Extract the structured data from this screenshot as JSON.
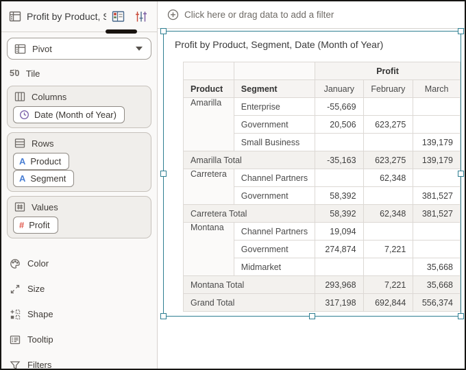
{
  "colors": {
    "selection_accent": "#2e7e91",
    "date_icon_purple": "#7a5fa8",
    "attribute_icon_blue": "#4a7fd4",
    "measure_icon_red": "#e0564a",
    "active_tab_underline": "#18130f"
  },
  "sidebar": {
    "title": "Profit by Product, S...",
    "tile_icon_glyph": "5̈0",
    "visualization_type": "Pivot",
    "tile_label": "Tile",
    "columns_section": {
      "label": "Columns",
      "pills": [
        {
          "label": "Date (Month of Year)",
          "icon": "clock-icon"
        }
      ]
    },
    "rows_section": {
      "label": "Rows",
      "pills": [
        {
          "label": "Product",
          "icon": "text-attribute-icon"
        },
        {
          "label": "Segment",
          "icon": "text-attribute-icon"
        }
      ]
    },
    "values_section": {
      "label": "Values",
      "pills": [
        {
          "label": "Profit",
          "icon": "number-measure-icon"
        }
      ]
    },
    "options": [
      {
        "label": "Color"
      },
      {
        "label": "Size"
      },
      {
        "label": "Shape"
      },
      {
        "label": "Tooltip"
      },
      {
        "label": "Filters"
      }
    ]
  },
  "filter_bar": {
    "label": "Click here or drag data to add a filter"
  },
  "visualization": {
    "title": "Profit by Product, Segment, Date (Month of Year)",
    "table": {
      "measure_header": "Profit",
      "row_headers": [
        "Product",
        "Segment"
      ],
      "column_headers": [
        "January",
        "February",
        "March"
      ],
      "rows": [
        {
          "type": "data",
          "product": "Amarilla",
          "product_rowspan": 3,
          "segment": "Enterprise",
          "values": [
            "-55,669",
            "",
            ""
          ]
        },
        {
          "type": "data",
          "segment": "Government",
          "values": [
            "20,506",
            "623,275",
            ""
          ]
        },
        {
          "type": "data",
          "segment": "Small Business",
          "values": [
            "",
            "",
            "139,179"
          ]
        },
        {
          "type": "total",
          "label": "Amarilla Total",
          "values": [
            "-35,163",
            "623,275",
            "139,179"
          ]
        },
        {
          "type": "data",
          "product": "Carretera",
          "product_rowspan": 2,
          "segment": "Channel Partners",
          "values": [
            "",
            "62,348",
            ""
          ]
        },
        {
          "type": "data",
          "segment": "Government",
          "values": [
            "58,392",
            "",
            "381,527"
          ]
        },
        {
          "type": "total",
          "label": "Carretera Total",
          "values": [
            "58,392",
            "62,348",
            "381,527"
          ]
        },
        {
          "type": "data",
          "product": "Montana",
          "product_rowspan": 3,
          "segment": "Channel Partners",
          "values": [
            "19,094",
            "",
            ""
          ]
        },
        {
          "type": "data",
          "segment": "Government",
          "values": [
            "274,874",
            "7,221",
            ""
          ]
        },
        {
          "type": "data",
          "segment": "Midmarket",
          "values": [
            "",
            "",
            "35,668"
          ]
        },
        {
          "type": "total",
          "label": "Montana Total",
          "values": [
            "293,968",
            "7,221",
            "35,668"
          ]
        },
        {
          "type": "total",
          "label": "Grand Total",
          "values": [
            "317,198",
            "692,844",
            "556,374"
          ]
        }
      ]
    }
  }
}
